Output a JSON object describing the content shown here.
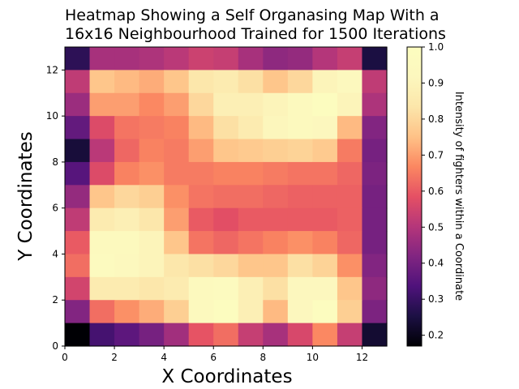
{
  "chart_data": {
    "type": "heatmap",
    "title": "Heatmap Showing a Self Organasing Map With a 16x16 Neighbourhood Trained for 1500 Iterations",
    "title_lines": [
      "Heatmap Showing a Self Organasing Map With a",
      "16x16 Neighbourhood Trained for 1500 Iterations"
    ],
    "xlabel": "X Coordinates",
    "ylabel": "Y Coordinates",
    "colorbar_label": "Intensity of fighters within a Coordinate",
    "colormap": "magma",
    "x_range": [
      0,
      13
    ],
    "y_range": [
      0,
      13
    ],
    "x_ticks": [
      0,
      2,
      4,
      6,
      8,
      10,
      12
    ],
    "y_ticks": [
      0,
      2,
      4,
      6,
      8,
      10,
      12
    ],
    "colorbar_range": [
      0.17,
      1.0
    ],
    "colorbar_ticks": [
      0.2,
      0.3,
      0.4,
      0.5,
      0.6,
      0.7,
      0.8,
      0.9,
      1.0
    ],
    "grid": false,
    "rows_note": "values listed from y=12 (top row) down to y=0 (bottom row); columns x=0..12",
    "values": [
      [
        0.28,
        0.48,
        0.48,
        0.49,
        0.51,
        0.54,
        0.53,
        0.48,
        0.44,
        0.45,
        0.5,
        0.53,
        0.25
      ],
      [
        0.52,
        0.76,
        0.74,
        0.72,
        0.76,
        0.84,
        0.86,
        0.82,
        0.76,
        0.8,
        0.9,
        0.93,
        0.52
      ],
      [
        0.46,
        0.7,
        0.7,
        0.67,
        0.7,
        0.8,
        0.88,
        0.88,
        0.9,
        0.95,
        0.98,
        0.9,
        0.49
      ],
      [
        0.37,
        0.57,
        0.64,
        0.65,
        0.66,
        0.74,
        0.82,
        0.86,
        0.91,
        0.94,
        0.92,
        0.74,
        0.42
      ],
      [
        0.24,
        0.51,
        0.62,
        0.66,
        0.65,
        0.7,
        0.76,
        0.77,
        0.78,
        0.79,
        0.77,
        0.65,
        0.4
      ],
      [
        0.35,
        0.57,
        0.66,
        0.68,
        0.65,
        0.65,
        0.66,
        0.66,
        0.65,
        0.64,
        0.64,
        0.62,
        0.41
      ],
      [
        0.45,
        0.76,
        0.8,
        0.78,
        0.68,
        0.64,
        0.63,
        0.63,
        0.62,
        0.61,
        0.61,
        0.61,
        0.4
      ],
      [
        0.52,
        0.86,
        0.88,
        0.84,
        0.7,
        0.6,
        0.58,
        0.6,
        0.6,
        0.6,
        0.6,
        0.61,
        0.4
      ],
      [
        0.6,
        0.94,
        0.94,
        0.9,
        0.76,
        0.64,
        0.62,
        0.64,
        0.66,
        0.68,
        0.66,
        0.62,
        0.4
      ],
      [
        0.63,
        0.96,
        0.93,
        0.9,
        0.84,
        0.82,
        0.8,
        0.76,
        0.76,
        0.82,
        0.79,
        0.68,
        0.42
      ],
      [
        0.55,
        0.86,
        0.86,
        0.84,
        0.86,
        0.95,
        0.96,
        0.88,
        0.82,
        0.92,
        0.92,
        0.76,
        0.44
      ],
      [
        0.42,
        0.63,
        0.68,
        0.72,
        0.78,
        0.94,
        0.99,
        0.88,
        0.74,
        0.92,
        0.98,
        0.78,
        0.41
      ],
      [
        0.17,
        0.32,
        0.36,
        0.4,
        0.47,
        0.59,
        0.63,
        0.53,
        0.48,
        0.56,
        0.67,
        0.53,
        0.23
      ]
    ]
  }
}
